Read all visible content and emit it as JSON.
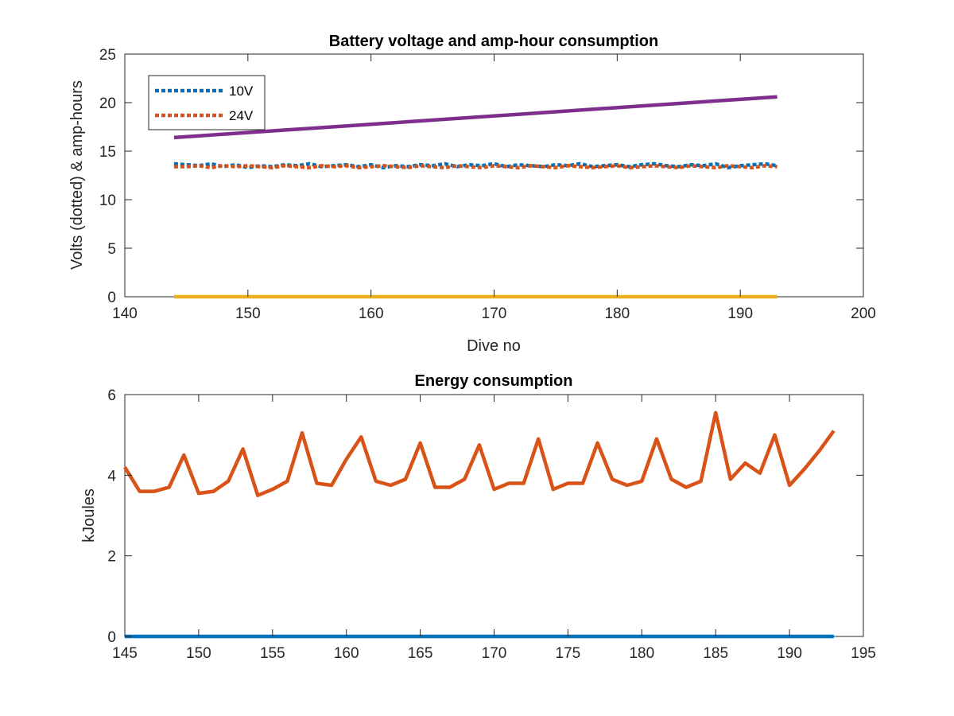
{
  "chart_data": [
    {
      "type": "line",
      "title": "Battery voltage and amp-hour consumption",
      "xlabel": "Dive no",
      "ylabel": "Volts (dotted) & amp-hours",
      "xlim": [
        140,
        200
      ],
      "ylim": [
        0,
        25
      ],
      "xticks": [
        140,
        150,
        160,
        170,
        180,
        190,
        200
      ],
      "yticks": [
        0,
        5,
        10,
        15,
        20,
        25
      ],
      "grid": false,
      "legend_position": "top-left",
      "legend": [
        "10V",
        "24V"
      ],
      "series": [
        {
          "name": "10V",
          "style": "dotted",
          "color": "#0072BD",
          "x": [
            144,
            145,
            146,
            147,
            148,
            149,
            150,
            151,
            152,
            153,
            154,
            155,
            156,
            157,
            158,
            159,
            160,
            161,
            162,
            163,
            164,
            165,
            166,
            167,
            168,
            169,
            170,
            171,
            172,
            173,
            174,
            175,
            176,
            177,
            178,
            179,
            180,
            181,
            182,
            183,
            184,
            185,
            186,
            187,
            188,
            189,
            190,
            191,
            192,
            193
          ],
          "y": [
            13.7,
            13.6,
            13.5,
            13.7,
            13.4,
            13.6,
            13.3,
            13.5,
            13.4,
            13.6,
            13.5,
            13.7,
            13.4,
            13.5,
            13.6,
            13.4,
            13.6,
            13.3,
            13.5,
            13.4,
            13.6,
            13.5,
            13.7,
            13.4,
            13.6,
            13.5,
            13.7,
            13.4,
            13.6,
            13.5,
            13.4,
            13.6,
            13.5,
            13.7,
            13.4,
            13.5,
            13.6,
            13.4,
            13.6,
            13.7,
            13.5,
            13.4,
            13.6,
            13.5,
            13.7,
            13.3,
            13.5,
            13.6,
            13.7,
            13.5
          ]
        },
        {
          "name": "24V",
          "style": "dotted",
          "color": "#D95319",
          "x": [
            144,
            145,
            146,
            147,
            148,
            149,
            150,
            151,
            152,
            153,
            154,
            155,
            156,
            157,
            158,
            159,
            160,
            161,
            162,
            163,
            164,
            165,
            166,
            167,
            168,
            169,
            170,
            171,
            172,
            173,
            174,
            175,
            176,
            177,
            178,
            179,
            180,
            181,
            182,
            183,
            184,
            185,
            186,
            187,
            188,
            189,
            190,
            191,
            192,
            193
          ],
          "y": [
            13.4,
            13.4,
            13.5,
            13.3,
            13.5,
            13.4,
            13.5,
            13.4,
            13.3,
            13.5,
            13.4,
            13.3,
            13.5,
            13.4,
            13.5,
            13.3,
            13.4,
            13.5,
            13.4,
            13.3,
            13.5,
            13.4,
            13.3,
            13.5,
            13.4,
            13.3,
            13.5,
            13.4,
            13.3,
            13.5,
            13.4,
            13.3,
            13.5,
            13.4,
            13.3,
            13.4,
            13.5,
            13.3,
            13.4,
            13.5,
            13.4,
            13.3,
            13.5,
            13.4,
            13.3,
            13.5,
            13.4,
            13.3,
            13.5,
            13.4
          ]
        },
        {
          "style": "solid",
          "color": "#EDB120",
          "x": [
            144,
            193
          ],
          "y": [
            0,
            0
          ]
        },
        {
          "style": "solid",
          "color": "#7E2F8E",
          "x": [
            144,
            193
          ],
          "y": [
            16.4,
            20.6
          ]
        }
      ]
    },
    {
      "type": "line",
      "title": "Energy consumption",
      "xlabel": "",
      "ylabel": "kJoules",
      "xlim": [
        145,
        195
      ],
      "ylim": [
        0,
        6
      ],
      "xticks": [
        145,
        150,
        155,
        160,
        165,
        170,
        175,
        180,
        185,
        190,
        195
      ],
      "yticks": [
        0,
        2,
        4,
        6
      ],
      "grid": false,
      "series": [
        {
          "style": "solid",
          "color": "#0072BD",
          "x": [
            145,
            193
          ],
          "y": [
            0,
            0
          ]
        },
        {
          "style": "solid",
          "color": "#D95319",
          "x": [
            145,
            146,
            147,
            148,
            149,
            150,
            151,
            152,
            153,
            154,
            155,
            156,
            157,
            158,
            159,
            160,
            161,
            162,
            163,
            164,
            165,
            166,
            167,
            168,
            169,
            170,
            171,
            172,
            173,
            174,
            175,
            176,
            177,
            178,
            179,
            180,
            181,
            182,
            183,
            184,
            185,
            186,
            187,
            188,
            189,
            190,
            191,
            192,
            193
          ],
          "y": [
            4.2,
            3.6,
            3.6,
            3.7,
            4.5,
            3.55,
            3.6,
            3.85,
            4.65,
            3.5,
            3.65,
            3.85,
            5.05,
            3.8,
            3.75,
            4.4,
            4.95,
            3.85,
            3.75,
            3.9,
            4.8,
            3.7,
            3.7,
            3.9,
            4.75,
            3.65,
            3.8,
            3.8,
            4.9,
            3.65,
            3.8,
            3.8,
            4.8,
            3.9,
            3.75,
            3.85,
            4.9,
            3.9,
            3.7,
            3.85,
            5.55,
            3.9,
            4.3,
            4.05,
            5.0,
            3.75,
            4.15,
            4.6,
            5.1
          ]
        }
      ]
    }
  ]
}
